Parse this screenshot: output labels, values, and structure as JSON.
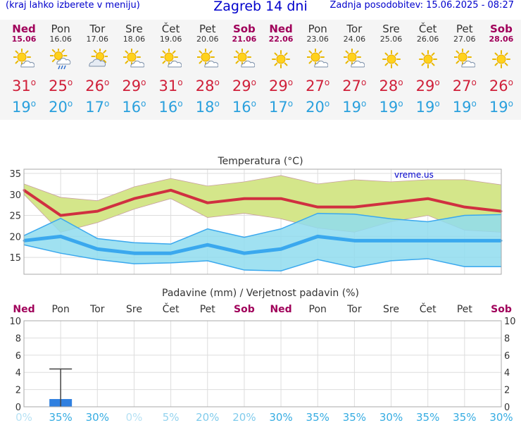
{
  "header": {
    "left_note": "(kraj lahko izberete v meniju)",
    "title": "Zagreb 14 dni",
    "updated": "Zadnja posodobitev: 15.06.2025 - 08:27"
  },
  "days": [
    {
      "name": "Ned",
      "date": "15.06",
      "weekend": true,
      "icon": "sun-cloud-icon",
      "max": "31",
      "min": "19"
    },
    {
      "name": "Pon",
      "date": "16.06",
      "weekend": false,
      "icon": "sun-cloud-rain-icon",
      "max": "25",
      "min": "20"
    },
    {
      "name": "Tor",
      "date": "17.06",
      "weekend": false,
      "icon": "cloud-sun-icon",
      "max": "26",
      "min": "17"
    },
    {
      "name": "Sre",
      "date": "18.06",
      "weekend": false,
      "icon": "sun-cloud-icon",
      "max": "29",
      "min": "16"
    },
    {
      "name": "Čet",
      "date": "19.06",
      "weekend": false,
      "icon": "sun-cloud-icon",
      "max": "31",
      "min": "16"
    },
    {
      "name": "Pet",
      "date": "20.06",
      "weekend": false,
      "icon": "sun-cloud-icon",
      "max": "28",
      "min": "18"
    },
    {
      "name": "Sob",
      "date": "21.06",
      "weekend": true,
      "icon": "sun-cloud-icon",
      "max": "29",
      "min": "16"
    },
    {
      "name": "Ned",
      "date": "22.06",
      "weekend": true,
      "icon": "sun-icon",
      "max": "29",
      "min": "17"
    },
    {
      "name": "Pon",
      "date": "23.06",
      "weekend": false,
      "icon": "sun-cloud-icon",
      "max": "27",
      "min": "20"
    },
    {
      "name": "Tor",
      "date": "24.06",
      "weekend": false,
      "icon": "sun-cloud-icon",
      "max": "27",
      "min": "19"
    },
    {
      "name": "Sre",
      "date": "25.06",
      "weekend": false,
      "icon": "sun-icon",
      "max": "28",
      "min": "19"
    },
    {
      "name": "Čet",
      "date": "26.06",
      "weekend": false,
      "icon": "sun-icon",
      "max": "29",
      "min": "19"
    },
    {
      "name": "Pet",
      "date": "27.06",
      "weekend": false,
      "icon": "sun-cloud-icon",
      "max": "27",
      "min": "19"
    },
    {
      "name": "Sob",
      "date": "28.06",
      "weekend": true,
      "icon": "sun-icon",
      "max": "26",
      "min": "19"
    }
  ],
  "colors": {
    "max_text": "#d0203a",
    "min_text": "#2aa0dd",
    "weekend_text": "#a0005a",
    "max_line": "#d03040",
    "max_band": "#d4e68a",
    "min_line": "#3aa8ee",
    "min_band": "#8fdcef",
    "overlap_band": "#7ccf86",
    "precip_bar": "#3080e0",
    "prob_color": "#2aa8e0"
  },
  "chart_data": [
    {
      "type": "line",
      "title": "Temperatura (°C)",
      "watermark": "vreme.us",
      "ylim": [
        11,
        36
      ],
      "yticks": [
        15,
        20,
        25,
        30,
        35
      ],
      "x_index": [
        0,
        1,
        2,
        3,
        4,
        5,
        6,
        7,
        8,
        9,
        10,
        11,
        12,
        13
      ],
      "series": [
        {
          "role": "max",
          "values": [
            31,
            25,
            26,
            29,
            31,
            28,
            29,
            29,
            27,
            27,
            28,
            29,
            27,
            26
          ],
          "upper": [
            32.5,
            29.3,
            28.5,
            31.8,
            33.8,
            32.0,
            33.0,
            34.5,
            32.5,
            33.5,
            33.0,
            33.5,
            33.5,
            32.3
          ],
          "lower": [
            30.0,
            21.0,
            23.3,
            26.5,
            29.0,
            24.5,
            25.5,
            24.2,
            22.0,
            21.0,
            23.5,
            25.0,
            21.5,
            21.0
          ]
        },
        {
          "role": "min",
          "values": [
            19,
            20,
            17,
            16,
            16,
            18,
            16,
            17,
            20,
            19,
            19,
            19,
            19,
            19
          ],
          "upper": [
            20.2,
            24.3,
            19.5,
            18.5,
            18.2,
            21.8,
            19.8,
            21.8,
            25.5,
            25.3,
            24.2,
            23.5,
            25.0,
            25.2
          ],
          "lower": [
            18.0,
            16.0,
            14.5,
            13.5,
            13.7,
            14.2,
            12.0,
            11.8,
            14.5,
            12.6,
            14.2,
            14.7,
            12.8,
            12.8
          ]
        }
      ]
    },
    {
      "type": "bar",
      "title": "Padavine (mm) / Verjetnost padavin (%)",
      "ylim": [
        0,
        10
      ],
      "yticks": [
        0,
        2,
        4,
        6,
        8,
        10
      ],
      "categories": [
        "Ned",
        "Pon",
        "Tor",
        "Sre",
        "Čet",
        "Pet",
        "Sob",
        "Ned",
        "Pon",
        "Tor",
        "Sre",
        "Čet",
        "Pet",
        "Sob"
      ],
      "values": [
        0,
        0.9,
        0,
        0,
        0,
        0,
        0,
        0,
        0,
        0,
        0,
        0,
        0,
        0
      ],
      "error_max": [
        0,
        4.4,
        0,
        0,
        0,
        0,
        0,
        0,
        0,
        0,
        0,
        0,
        0,
        0
      ],
      "probability": [
        "0%",
        "35%",
        "30%",
        "0%",
        "5%",
        "20%",
        "20%",
        "30%",
        "35%",
        "35%",
        "30%",
        "35%",
        "35%",
        "30%"
      ]
    }
  ]
}
